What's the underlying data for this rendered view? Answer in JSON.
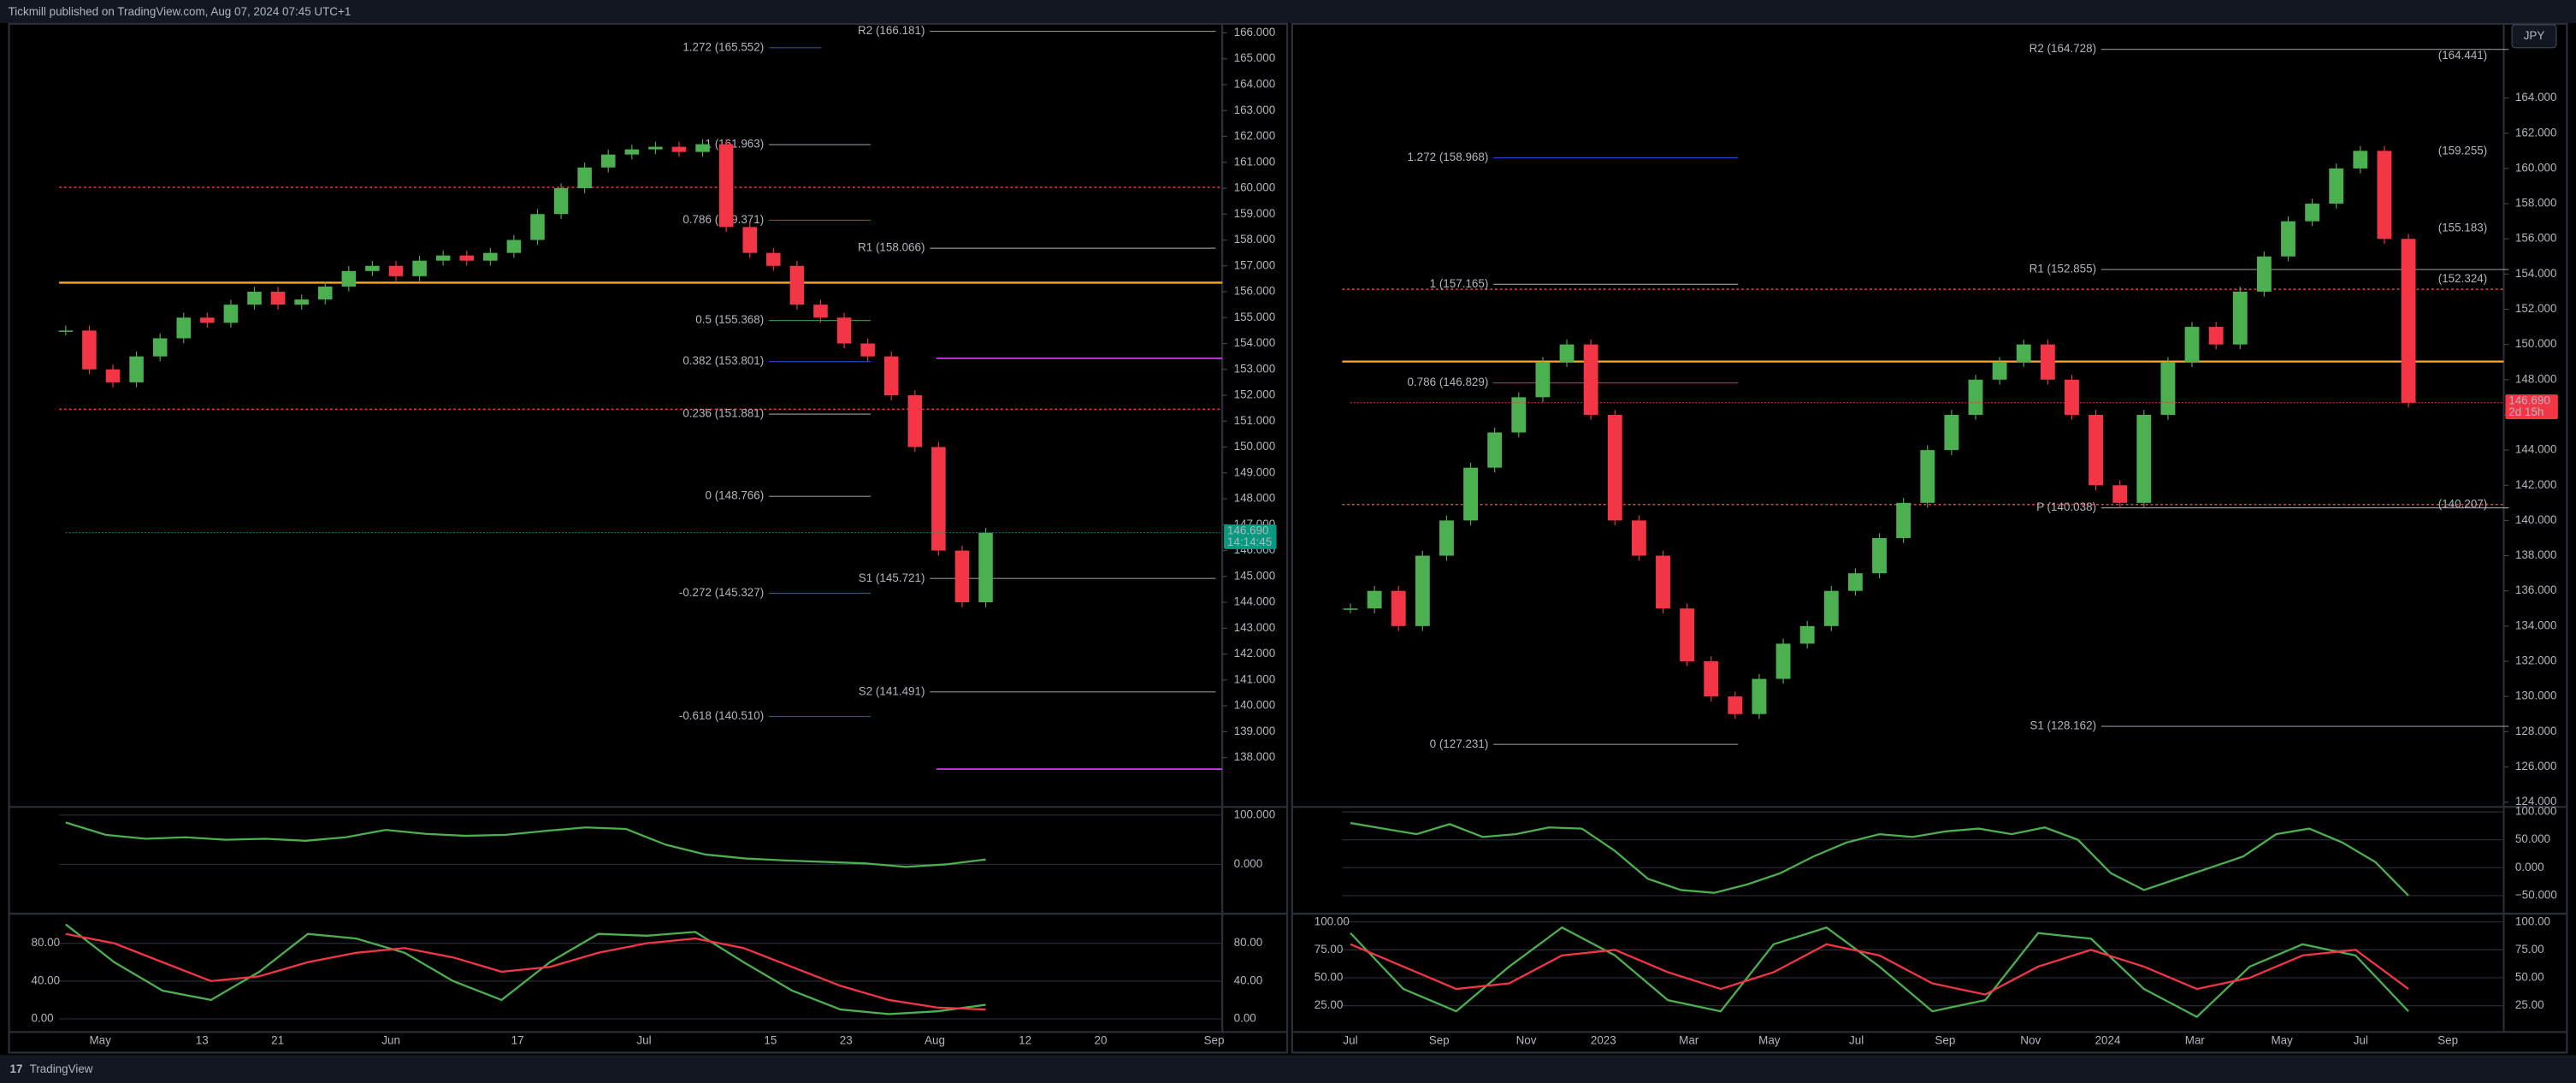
{
  "header": "Tickmill published on TradingView.com, Aug 07, 2024 07:45 UTC+1",
  "footer": "TradingView",
  "chart_data": [
    {
      "type": "candlestick",
      "up_color": "#4caf50",
      "down_color": "#f23645",
      "closes": [
        154.5,
        153,
        152.5,
        153.5,
        154.2,
        155,
        154.8,
        155.5,
        156,
        155.5,
        155.7,
        156.2,
        156.8,
        157,
        156.6,
        157.2,
        157.4,
        157.2,
        157.5,
        158,
        159,
        160,
        160.8,
        161.3,
        161.5,
        161.6,
        161.4,
        161.7,
        158.5,
        157.5,
        157,
        155.5,
        155,
        154,
        153.5,
        152,
        150,
        146,
        144,
        146.69
      ],
      "ylim": [
        136.16,
        166.38
      ],
      "yticks": [
        {
          "value": 166,
          "label": "166.000"
        },
        {
          "value": 165,
          "label": "165.000"
        },
        {
          "value": 164,
          "label": "164.000"
        },
        {
          "value": 163,
          "label": "163.000"
        },
        {
          "value": 162,
          "label": "162.000"
        },
        {
          "value": 161,
          "label": "161.000"
        },
        {
          "value": 160,
          "label": "160.000"
        },
        {
          "value": 159,
          "label": "159.000"
        },
        {
          "value": 158,
          "label": "158.000"
        },
        {
          "value": 157,
          "label": "157.000"
        },
        {
          "value": 156,
          "label": "156.000"
        },
        {
          "value": 155,
          "label": "155.000"
        },
        {
          "value": 154,
          "label": "154.000"
        },
        {
          "value": 153,
          "label": "153.000"
        },
        {
          "value": 152,
          "label": "152.000"
        },
        {
          "value": 151,
          "label": "151.000"
        },
        {
          "value": 150,
          "label": "150.000"
        },
        {
          "value": 149,
          "label": "149.000"
        },
        {
          "value": 148,
          "label": "148.000"
        },
        {
          "value": 147,
          "label": "147.000"
        },
        {
          "value": 146,
          "label": "146.000"
        },
        {
          "value": 145,
          "label": "145.000"
        },
        {
          "value": 144,
          "label": "144.000"
        },
        {
          "value": 143,
          "label": "143.000"
        },
        {
          "value": 142,
          "label": "142.000"
        },
        {
          "value": 141,
          "label": "141.000"
        },
        {
          "value": 140,
          "label": "140.000"
        },
        {
          "value": 139,
          "label": "139.000"
        },
        {
          "value": 138,
          "label": "138.000"
        }
      ],
      "categories": [
        "May",
        "13",
        "21",
        "Jun",
        "17",
        "Jul",
        "15",
        "23",
        "Aug",
        "12",
        "20",
        "Sep"
      ],
      "annotations": [
        "R2 (166.181)",
        "1.272 (165.552)",
        "1 (161.963)",
        "0.786 (159.371)",
        "R1 (158.066)",
        "0.5 (155.368)",
        "0.382 (153.801)",
        "0.236 (151.881)",
        "0 (148.766)",
        "S1 (145.721)",
        "-0.272 (145.327)",
        "S2 (141.491)",
        "-0.618 (140.510)"
      ],
      "price_label": "146.690",
      "countdown": "14:14:45",
      "badge_color": "#089981",
      "panes": [
        {
          "ylim": [
            -96.7,
            113.3
          ],
          "yticks": [
            {
              "value": 100,
              "label": "100.000"
            },
            {
              "value": 0,
              "label": "0.000"
            }
          ],
          "series": [
            {
              "color": "#4caf50",
              "values": [
                85,
                60,
                52,
                55,
                50,
                52,
                48,
                55,
                70,
                62,
                58,
                60,
                68,
                75,
                72,
                40,
                20,
                12,
                8,
                5,
                2,
                -5,
                0,
                10
              ]
            }
          ]
        },
        {
          "ylim": [
            -13.9,
            109.6
          ],
          "yticks": [
            {
              "value": 80,
              "label": "80.00"
            },
            {
              "value": 40,
              "label": "40.00"
            },
            {
              "value": 0,
              "label": "0.00"
            }
          ],
          "series": [
            {
              "color": "#4caf50",
              "values": [
                100,
                60,
                30,
                20,
                50,
                90,
                85,
                70,
                40,
                20,
                60,
                90,
                88,
                92,
                60,
                30,
                10,
                5,
                8,
                15
              ]
            },
            {
              "color": "#f23645",
              "values": [
                90,
                80,
                60,
                40,
                45,
                60,
                70,
                75,
                65,
                50,
                55,
                70,
                80,
                85,
                75,
                55,
                35,
                20,
                12,
                10
              ]
            }
          ]
        }
      ]
    },
    {
      "type": "candlestick",
      "up_color": "#4caf50",
      "down_color": "#f23645",
      "closes": [
        135,
        136,
        134,
        138,
        140,
        143,
        145,
        147,
        149,
        150,
        146,
        140,
        138,
        135,
        132,
        130,
        129,
        131,
        133,
        134,
        136,
        137,
        139,
        141,
        144,
        146,
        148,
        149,
        150,
        148,
        146,
        142,
        141,
        146,
        149,
        151,
        150,
        153,
        155,
        157,
        158,
        160,
        161,
        156,
        146.69
      ],
      "ylim": [
        123.82,
        168.26
      ],
      "yticks": [
        {
          "value": 164,
          "label": "164.000"
        },
        {
          "value": 162,
          "label": "162.000"
        },
        {
          "value": 160,
          "label": "160.000"
        },
        {
          "value": 158,
          "label": "158.000"
        },
        {
          "value": 156,
          "label": "156.000"
        },
        {
          "value": 154,
          "label": "154.000"
        },
        {
          "value": 152,
          "label": "152.000"
        },
        {
          "value": 150,
          "label": "150.000"
        },
        {
          "value": 148,
          "label": "148.000"
        },
        {
          "value": 146,
          "label": "146.000"
        },
        {
          "value": 144,
          "label": "144.000"
        },
        {
          "value": 142,
          "label": "142.000"
        },
        {
          "value": 140,
          "label": "140.000"
        },
        {
          "value": 138,
          "label": "138.000"
        },
        {
          "value": 136,
          "label": "136.000"
        },
        {
          "value": 134,
          "label": "134.000"
        },
        {
          "value": 132,
          "label": "132.000"
        },
        {
          "value": 130,
          "label": "130.000"
        },
        {
          "value": 128,
          "label": "128.000"
        },
        {
          "value": 126,
          "label": "126.000"
        },
        {
          "value": 124,
          "label": "124.000"
        }
      ],
      "categories": [
        "Jul",
        "Sep",
        "Nov",
        "2023",
        "Mar",
        "May",
        "Jul",
        "Sep",
        "Nov",
        "2024",
        "Mar",
        "May",
        "Jul",
        "Sep"
      ],
      "annotations": [
        "R2 (164.728)",
        "(164.441)",
        "1.272 (158.968)",
        "(159.255)",
        "(155.183)",
        "R1 (152.855)",
        "(152.324)",
        "1 (157.165)",
        "0.786 (146.829)",
        "P (140.038)",
        "(140.207)",
        "0 (127.231)",
        "S1 (128.162)"
      ],
      "price_label": "146.690",
      "countdown": "2d 15h",
      "badge_color": "#f23645",
      "currency": "JPY",
      "panes": [
        {
          "ylim": [
            -79.4,
            105.9
          ],
          "yticks": [
            {
              "value": 100,
              "label": "100.000"
            },
            {
              "value": 50,
              "label": "50.000"
            },
            {
              "value": 0,
              "label": "0.000"
            },
            {
              "value": -50,
              "label": "−50.000"
            }
          ],
          "series": [
            {
              "color": "#4caf50",
              "values": [
                80,
                70,
                60,
                78,
                55,
                60,
                72,
                70,
                30,
                -20,
                -40,
                -45,
                -30,
                -10,
                20,
                45,
                60,
                55,
                65,
                70,
                60,
                72,
                50,
                -10,
                -40,
                -20,
                0,
                20,
                60,
                70,
                45,
                10,
                -50
              ]
            }
          ]
        },
        {
          "ylim": [
            1.5,
            105.9
          ],
          "yticks": [
            {
              "value": 100,
              "label": "100.00"
            },
            {
              "value": 75,
              "label": "75.00"
            },
            {
              "value": 50,
              "label": "50.00"
            },
            {
              "value": 25,
              "label": "25.00"
            }
          ],
          "series": [
            {
              "color": "#4caf50",
              "values": [
                90,
                40,
                20,
                60,
                95,
                70,
                30,
                20,
                80,
                95,
                60,
                20,
                30,
                90,
                85,
                40,
                15,
                60,
                80,
                70,
                20
              ]
            },
            {
              "color": "#f23645",
              "values": [
                80,
                60,
                40,
                45,
                70,
                75,
                55,
                40,
                55,
                80,
                70,
                45,
                35,
                60,
                75,
                60,
                40,
                50,
                70,
                75,
                40
              ]
            }
          ]
        }
      ]
    }
  ]
}
